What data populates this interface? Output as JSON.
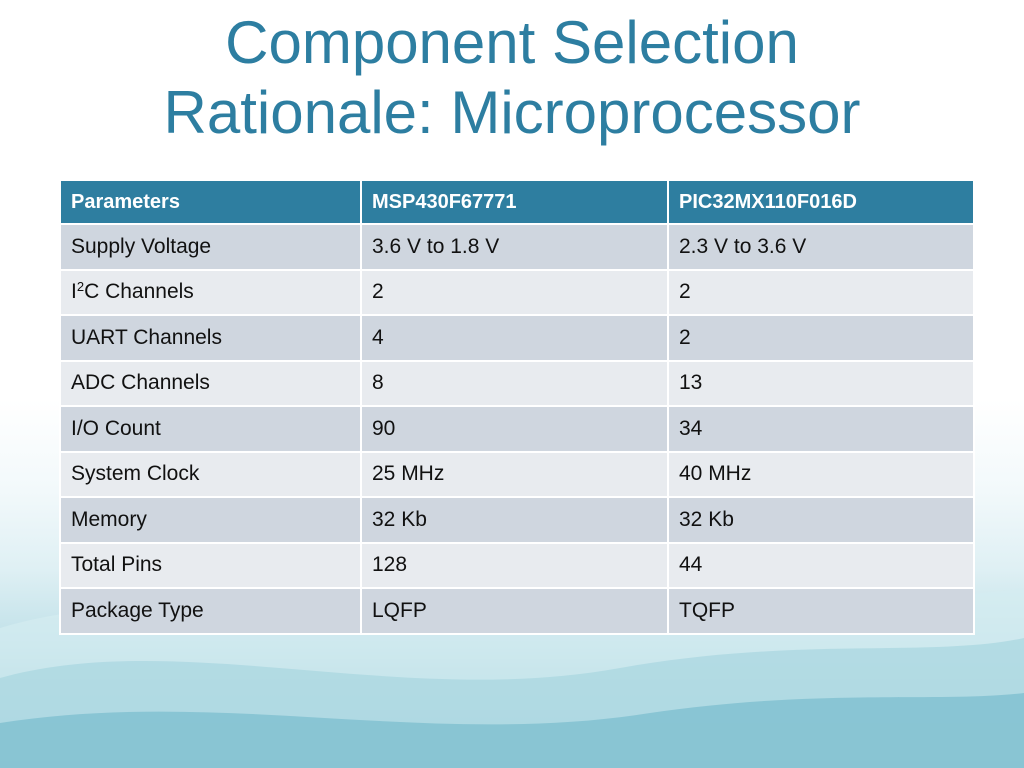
{
  "slide": {
    "title_line1": "Component Selection",
    "title_line2": "Rationale: Microprocessor"
  },
  "table": {
    "headers": [
      "Parameters",
      "MSP430F67771",
      "PIC32MX110F016D"
    ],
    "rows": [
      {
        "param": "Supply Voltage",
        "msp": "3.6 V to 1.8 V",
        "pic": "2.3 V to 3.6 V"
      },
      {
        "param_prefix": "I",
        "param_sup": "2",
        "param_suffix": "C Channels",
        "msp": "2",
        "pic": "2"
      },
      {
        "param": "UART Channels",
        "msp": "4",
        "pic": "2"
      },
      {
        "param": "ADC Channels",
        "msp": "8",
        "pic": "13"
      },
      {
        "param": "I/O Count",
        "msp": "90",
        "pic": "34"
      },
      {
        "param": "System Clock",
        "msp": "25 MHz",
        "pic": "40 MHz"
      },
      {
        "param": "Memory",
        "msp": "32 Kb",
        "pic": "32 Kb"
      },
      {
        "param": "Total Pins",
        "msp": "128",
        "pic": "44"
      },
      {
        "param": "Package Type",
        "msp": "LQFP",
        "pic": "TQFP"
      }
    ]
  },
  "colors": {
    "title": "#2d7ea1",
    "header_bg": "#2e7ea0",
    "row_dark": "#cfd6df",
    "row_light": "#e8ebef",
    "wave": "#7cbccc"
  }
}
